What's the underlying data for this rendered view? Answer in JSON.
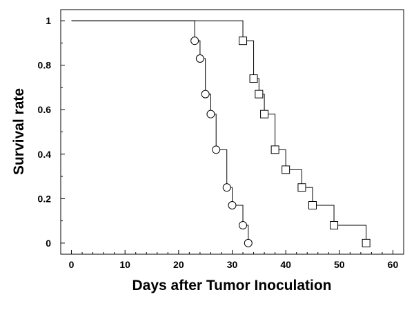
{
  "chart_data": {
    "type": "line",
    "title": "",
    "xlabel": "Days after Tumor Inoculation",
    "ylabel": "Survival rate",
    "xlim": [
      -2,
      62
    ],
    "ylim": [
      -0.05,
      1.05
    ],
    "x_ticks": [
      0,
      10,
      20,
      30,
      40,
      50,
      60
    ],
    "x_tick_labels": [
      "0",
      "10",
      "20",
      "30",
      "40",
      "50",
      "60"
    ],
    "y_ticks": [
      0,
      0.2,
      0.4,
      0.6,
      0.8,
      1
    ],
    "y_tick_labels": [
      "0",
      "0.2",
      "0.4",
      "0.6",
      "0.8",
      "1"
    ],
    "grid": false,
    "legend": false,
    "series": [
      {
        "marker": "circle",
        "color": "#000000",
        "start": [
          0,
          1
        ],
        "x": [
          23,
          24,
          25,
          26,
          27,
          29,
          30,
          32,
          33
        ],
        "y": [
          0.91,
          0.83,
          0.67,
          0.58,
          0.42,
          0.25,
          0.17,
          0.08,
          0
        ]
      },
      {
        "marker": "square",
        "color": "#000000",
        "start": [
          0,
          1
        ],
        "x": [
          32,
          34,
          35,
          36,
          38,
          40,
          43,
          45,
          49,
          55
        ],
        "y": [
          0.91,
          0.74,
          0.67,
          0.58,
          0.42,
          0.33,
          0.25,
          0.17,
          0.08,
          0
        ]
      }
    ]
  }
}
